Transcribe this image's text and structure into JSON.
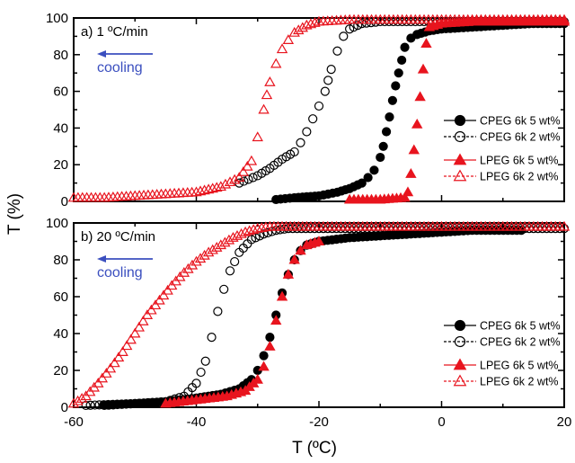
{
  "chart_data": [
    {
      "type": "scatter",
      "panel_label": "a) 1 ºC/min",
      "annotation": "cooling",
      "annotation_color": "#3b4fbf",
      "xlabel": "T (ºC)",
      "ylabel": "T (%)",
      "xlim": [
        -60,
        20
      ],
      "ylim": [
        0,
        100
      ],
      "x_ticks": [
        "-60",
        "-40",
        "-20",
        "0",
        "20"
      ],
      "y_ticks": [
        "0",
        "20",
        "40",
        "60",
        "80",
        "100"
      ],
      "legend_position": "right",
      "series": [
        {
          "name": "CPEG 6k 5 wt%",
          "color": "#000000",
          "marker": "circle",
          "filled": true,
          "x": [
            -27,
            -24,
            -20,
            -17,
            -15,
            -13,
            -12,
            -11,
            -10,
            -9.5,
            -9,
            -8.5,
            -8,
            -7.5,
            -7,
            -6.5,
            -6,
            -5,
            -4,
            -2,
            0,
            5,
            10,
            15,
            20
          ],
          "y": [
            1,
            2,
            3,
            5,
            7,
            10,
            13,
            17,
            24,
            30,
            38,
            46,
            55,
            63,
            70,
            77,
            84,
            89,
            91,
            93,
            94,
            95,
            96,
            97,
            97
          ]
        },
        {
          "name": "CPEG 6k 2 wt%",
          "color": "#000000",
          "marker": "circle",
          "filled": false,
          "x": [
            -33,
            -30,
            -28,
            -26,
            -24,
            -23,
            -22,
            -21,
            -20,
            -19,
            -18.5,
            -18,
            -17,
            -16,
            -15,
            -13,
            -10,
            -5,
            0,
            10,
            20
          ],
          "y": [
            10,
            14,
            18,
            23,
            27,
            32,
            38,
            45,
            52,
            60,
            66,
            72,
            82,
            90,
            94,
            97,
            98,
            98,
            98,
            98,
            98
          ]
        },
        {
          "name": "LPEG 6k 5 wt%",
          "color": "#e8141e",
          "marker": "triangle",
          "filled": true,
          "x": [
            -15,
            -10,
            -6,
            -5.5,
            -5,
            -4.5,
            -4,
            -3.5,
            -3,
            -2.5,
            -2,
            0,
            5,
            10,
            15,
            20
          ],
          "y": [
            1,
            1,
            2,
            5,
            15,
            28,
            42,
            57,
            72,
            86,
            95,
            97,
            98,
            98,
            98,
            98
          ]
        },
        {
          "name": "LPEG 6k 2 wt%",
          "color": "#e8141e",
          "marker": "triangle",
          "filled": false,
          "x": [
            -60,
            -55,
            -50,
            -45,
            -40,
            -36,
            -33,
            -31,
            -30,
            -29,
            -28.5,
            -28,
            -27,
            -26,
            -25,
            -24,
            -22,
            -20,
            -15,
            -10,
            0,
            10,
            20
          ],
          "y": [
            2,
            2,
            3,
            4,
            5,
            8,
            13,
            22,
            35,
            50,
            58,
            65,
            75,
            83,
            88,
            92,
            96,
            98,
            99,
            99,
            99,
            99,
            99
          ]
        }
      ]
    },
    {
      "type": "scatter",
      "panel_label": "b) 20 ºC/min",
      "annotation": "cooling",
      "annotation_color": "#3b4fbf",
      "xlabel": "T (ºC)",
      "ylabel": "T (%)",
      "xlim": [
        -60,
        20
      ],
      "ylim": [
        0,
        100
      ],
      "x_ticks": [
        "-60",
        "-40",
        "-20",
        "0",
        "20"
      ],
      "y_ticks": [
        "0",
        "20",
        "40",
        "60",
        "80",
        "100"
      ],
      "legend_position": "right",
      "series": [
        {
          "name": "CPEG 6k 5 wt%",
          "color": "#000000",
          "marker": "circle",
          "filled": true,
          "x": [
            -55,
            -50,
            -45,
            -40,
            -36,
            -33,
            -31,
            -30,
            -29,
            -28,
            -27,
            -26,
            -25,
            -24,
            -23,
            -22,
            -20,
            -15,
            -10,
            -5,
            0,
            5,
            13
          ],
          "y": [
            1,
            2,
            3,
            5,
            7,
            10,
            15,
            20,
            28,
            38,
            50,
            62,
            72,
            80,
            85,
            88,
            90,
            92,
            93,
            94,
            95,
            96,
            96
          ]
        },
        {
          "name": "CPEG 6k 2 wt%",
          "color": "#000000",
          "marker": "circle",
          "filled": false,
          "x": [
            -58,
            -50,
            -45,
            -42,
            -40,
            -38.5,
            -37.5,
            -36.5,
            -35.5,
            -34.5,
            -33,
            -31,
            -29,
            -27,
            -25,
            -20,
            -10,
            0,
            10,
            20
          ],
          "y": [
            1,
            2,
            3,
            6,
            13,
            25,
            38,
            52,
            64,
            74,
            84,
            91,
            94,
            96,
            97,
            97,
            97,
            97,
            97,
            97
          ]
        },
        {
          "name": "LPEG 6k 5 wt%",
          "color": "#e8141e",
          "marker": "triangle",
          "filled": true,
          "x": [
            -45,
            -40,
            -35,
            -32,
            -30,
            -29,
            -28,
            -27,
            -26,
            -25,
            -24,
            -23,
            -22,
            -20
          ],
          "y": [
            2,
            4,
            6,
            9,
            15,
            22,
            33,
            47,
            60,
            72,
            80,
            85,
            88,
            90
          ]
        },
        {
          "name": "LPEG 6k 2 wt%",
          "color": "#e8141e",
          "marker": "triangle",
          "filled": false,
          "x": [
            -60,
            -58,
            -56,
            -54,
            -52,
            -50,
            -48,
            -46,
            -44,
            -42,
            -40,
            -38,
            -36,
            -34,
            -32,
            -30,
            -28,
            -26,
            -20,
            -10,
            0,
            10,
            20
          ],
          "y": [
            2,
            6,
            13,
            21,
            30,
            40,
            50,
            58,
            66,
            73,
            79,
            84,
            88,
            92,
            95,
            97,
            98,
            98,
            98,
            98,
            98,
            98,
            98
          ]
        }
      ]
    }
  ]
}
